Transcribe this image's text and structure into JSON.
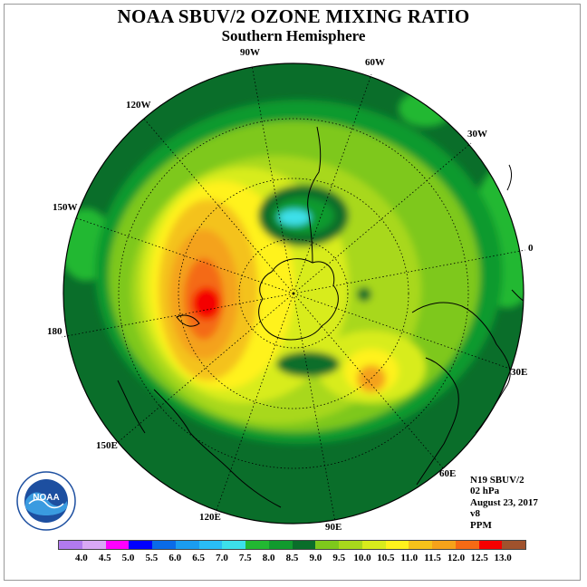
{
  "title": "NOAA SBUV/2 OZONE MIXING RATIO",
  "subtitle": "Southern Hemisphere",
  "longitude_labels": [
    "90W",
    "60W",
    "30W",
    "0",
    "30E",
    "60E",
    "90E",
    "120E",
    "150E",
    "180",
    "150W",
    "120W"
  ],
  "info": {
    "satellite": "N19 SBUV/2",
    "level": "02 hPa",
    "date": "August 23, 2017",
    "version": "v8",
    "units": "PPM"
  },
  "legend": {
    "ticks": [
      "4.0",
      "4.5",
      "5.0",
      "5.5",
      "6.0",
      "6.5",
      "7.0",
      "7.5",
      "8.0",
      "8.5",
      "9.0",
      "9.5",
      "10.0",
      "10.5",
      "11.0",
      "11.5",
      "12.0",
      "12.5",
      "13.0"
    ],
    "colors": [
      "#b27aef",
      "#d9a8f5",
      "#ff00ff",
      "#0000ff",
      "#0a6be8",
      "#1a9cf0",
      "#29bdf5",
      "#3ce0ea",
      "#22b832",
      "#119a2e",
      "#0a6e2a",
      "#7ec81c",
      "#a8d81c",
      "#d8ec1c",
      "#fff21c",
      "#f4c21a",
      "#f4a21a",
      "#f46a14",
      "#f40000",
      "#a0522d"
    ]
  },
  "logo": {
    "text": "NOAA",
    "icon": "noaa-logo-icon"
  }
}
